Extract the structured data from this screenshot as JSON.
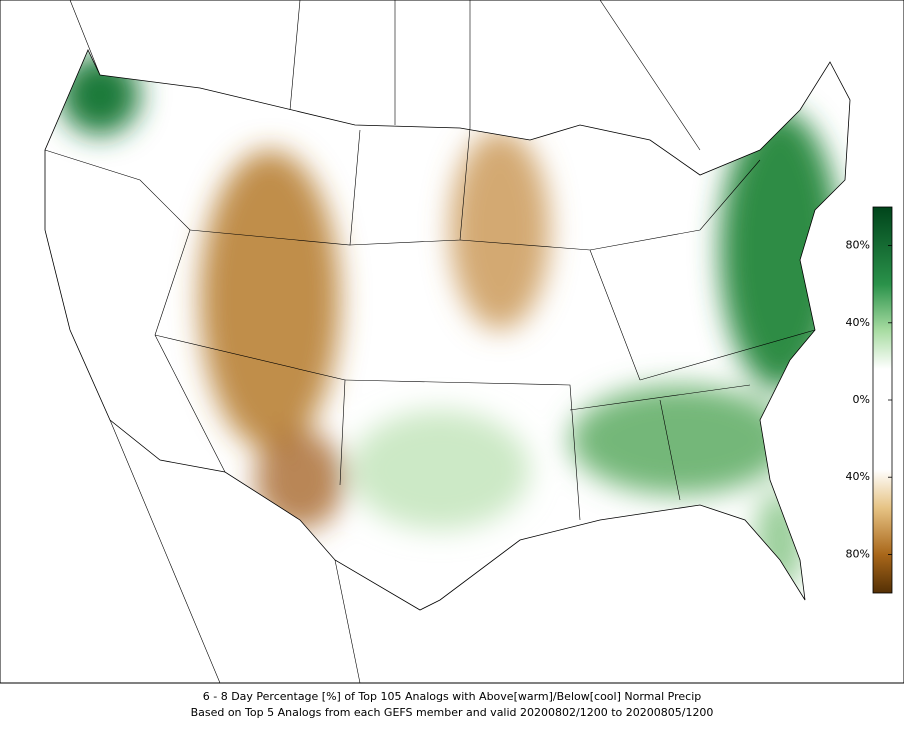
{
  "caption": {
    "line1": "6 - 8 Day Percentage [%] of Top 105 Analogs with Above[warm]/Below[cool] Normal Precip",
    "line2": "Based on Top 5 Analogs from each GEFS member and valid 20200802/1200 to 20200805/1200"
  },
  "colorbar": {
    "lim": [
      -100,
      100
    ],
    "ticks": [
      {
        "value": 80,
        "label": "80%"
      },
      {
        "value": 40,
        "label": "40%"
      },
      {
        "value": 0,
        "label": "0%"
      },
      {
        "value": -40,
        "label": "40%"
      },
      {
        "value": -80,
        "label": "80%"
      }
    ]
  }
}
